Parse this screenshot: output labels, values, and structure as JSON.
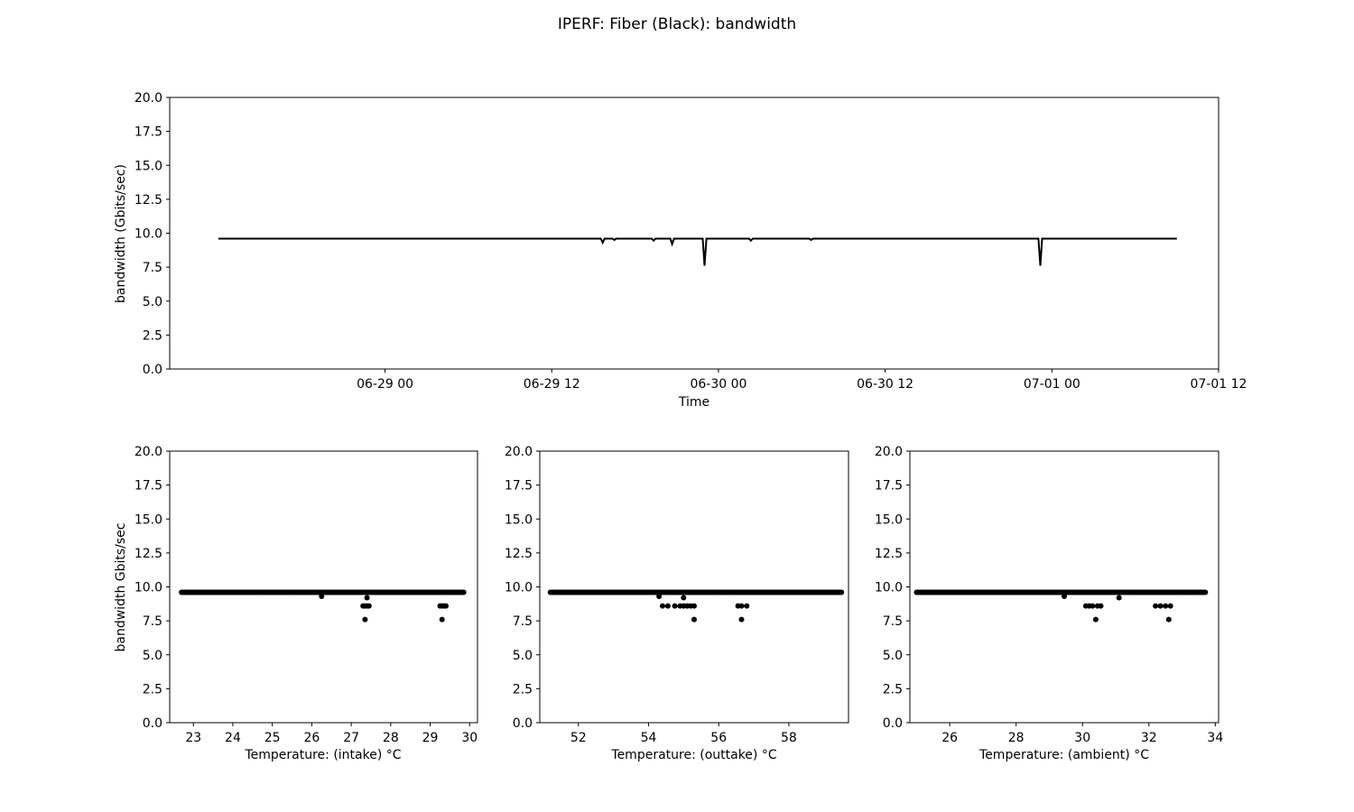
{
  "figure": {
    "title": "IPERF: Fiber (Black): bandwidth"
  },
  "chart_data": [
    {
      "type": "line",
      "xlabel": "Time",
      "ylabel": "bandwidth (Gbits/sec)",
      "x_unit": "datetime",
      "xlim": [
        "2019-06-28 08:30",
        "2019-07-01 12:00"
      ],
      "ylim": [
        0,
        20
      ],
      "xticks": [
        "06-29 00",
        "06-29 12",
        "06-30 00",
        "06-30 12",
        "07-01 00",
        "07-01 12"
      ],
      "yticks": [
        "0.0",
        "2.5",
        "5.0",
        "7.5",
        "10.0",
        "12.5",
        "15.0",
        "17.5",
        "20.0"
      ],
      "color": "#000000",
      "baseline": 9.6,
      "x_start": "2019-06-28 12:00",
      "x_end": "2019-07-01 09:00",
      "dips": [
        {
          "x": "2019-06-29 15:40",
          "y": 9.3
        },
        {
          "x": "2019-06-29 16:30",
          "y": 9.5
        },
        {
          "x": "2019-06-29 19:20",
          "y": 9.45
        },
        {
          "x": "2019-06-29 20:40",
          "y": 9.2
        },
        {
          "x": "2019-06-29 23:00",
          "y": 7.6
        },
        {
          "x": "2019-06-30 02:20",
          "y": 9.45
        },
        {
          "x": "2019-06-30 06:40",
          "y": 9.5
        },
        {
          "x": "2019-06-30 23:10",
          "y": 7.6
        }
      ]
    },
    {
      "type": "scatter",
      "xlabel": "Temperature: (intake) °C",
      "ylabel": "bandwidth Gbits/sec",
      "xlim": [
        22.4,
        30.2
      ],
      "ylim": [
        0,
        20
      ],
      "xticks": [
        "23",
        "24",
        "25",
        "26",
        "27",
        "28",
        "29",
        "30"
      ],
      "yticks": [
        "0.0",
        "2.5",
        "5.0",
        "7.5",
        "10.0",
        "12.5",
        "15.0",
        "17.5",
        "20.0"
      ],
      "color": "#000000",
      "main_y": 9.6,
      "main_x_range": [
        22.7,
        29.85
      ],
      "points": [
        {
          "x": 26.25,
          "y": 9.3
        },
        {
          "x": 27.3,
          "y": 8.6
        },
        {
          "x": 27.35,
          "y": 8.6
        },
        {
          "x": 27.4,
          "y": 8.6
        },
        {
          "x": 27.45,
          "y": 8.6
        },
        {
          "x": 27.4,
          "y": 9.2
        },
        {
          "x": 27.35,
          "y": 7.6
        },
        {
          "x": 29.25,
          "y": 8.6
        },
        {
          "x": 29.3,
          "y": 8.6
        },
        {
          "x": 29.35,
          "y": 8.6
        },
        {
          "x": 29.4,
          "y": 8.6
        },
        {
          "x": 29.3,
          "y": 7.6
        }
      ]
    },
    {
      "type": "scatter",
      "xlabel": "Temperature: (outtake) °C",
      "ylabel": "",
      "xlim": [
        50.9,
        59.7
      ],
      "ylim": [
        0,
        20
      ],
      "xticks": [
        "52",
        "54",
        "56",
        "58"
      ],
      "yticks": [
        "0.0",
        "2.5",
        "5.0",
        "7.5",
        "10.0",
        "12.5",
        "15.0",
        "17.5",
        "20.0"
      ],
      "color": "#000000",
      "main_y": 9.6,
      "main_x_range": [
        51.2,
        59.5
      ],
      "points": [
        {
          "x": 54.3,
          "y": 9.3
        },
        {
          "x": 54.4,
          "y": 8.6
        },
        {
          "x": 54.55,
          "y": 8.6
        },
        {
          "x": 54.75,
          "y": 8.6
        },
        {
          "x": 54.9,
          "y": 8.6
        },
        {
          "x": 55.0,
          "y": 8.6
        },
        {
          "x": 55.1,
          "y": 8.6
        },
        {
          "x": 55.2,
          "y": 8.6
        },
        {
          "x": 55.3,
          "y": 8.6
        },
        {
          "x": 55.0,
          "y": 9.2
        },
        {
          "x": 55.3,
          "y": 7.6
        },
        {
          "x": 56.55,
          "y": 8.6
        },
        {
          "x": 56.65,
          "y": 8.6
        },
        {
          "x": 56.8,
          "y": 8.6
        },
        {
          "x": 56.65,
          "y": 7.6
        }
      ]
    },
    {
      "type": "scatter",
      "xlabel": "Temperature: (ambient) °C",
      "ylabel": "",
      "xlim": [
        24.8,
        34.1
      ],
      "ylim": [
        0,
        20
      ],
      "xticks": [
        "26",
        "28",
        "30",
        "32",
        "34"
      ],
      "yticks": [
        "0.0",
        "2.5",
        "5.0",
        "7.5",
        "10.0",
        "12.5",
        "15.0",
        "17.5",
        "20.0"
      ],
      "color": "#000000",
      "main_y": 9.6,
      "main_x_range": [
        25.0,
        33.7
      ],
      "points": [
        {
          "x": 29.45,
          "y": 9.3
        },
        {
          "x": 30.1,
          "y": 8.6
        },
        {
          "x": 30.2,
          "y": 8.6
        },
        {
          "x": 30.3,
          "y": 8.6
        },
        {
          "x": 30.45,
          "y": 8.6
        },
        {
          "x": 30.55,
          "y": 8.6
        },
        {
          "x": 30.4,
          "y": 7.6
        },
        {
          "x": 31.1,
          "y": 9.2
        },
        {
          "x": 32.2,
          "y": 8.6
        },
        {
          "x": 32.35,
          "y": 8.6
        },
        {
          "x": 32.5,
          "y": 8.6
        },
        {
          "x": 32.65,
          "y": 8.6
        },
        {
          "x": 32.6,
          "y": 7.6
        }
      ]
    }
  ]
}
